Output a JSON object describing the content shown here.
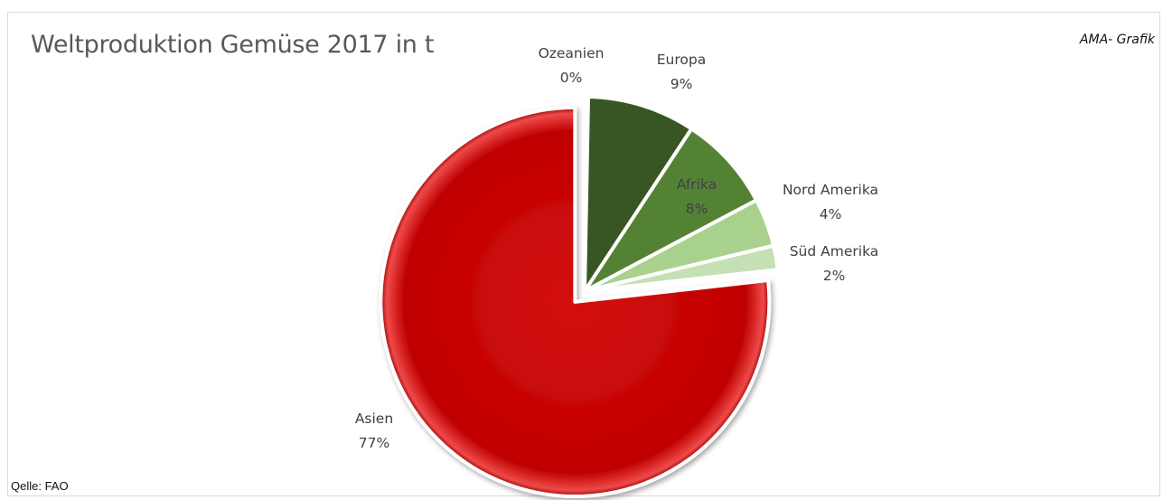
{
  "chart_data": {
    "type": "pie",
    "title": "Weltproduktion Gemüse 2017 in t",
    "credit": "AMA- Grafik",
    "source": "Qelle: FAO",
    "slices": [
      {
        "name": "Ozeanien",
        "value": 0.3,
        "label": "0%",
        "color": "#2f4a1c",
        "exploded": false
      },
      {
        "name": "Europa",
        "value": 9,
        "label": "9%",
        "color": "#375623",
        "exploded": false
      },
      {
        "name": "Afrika",
        "value": 8,
        "label": "8%",
        "color": "#548235",
        "exploded": false
      },
      {
        "name": "Nord Amerika",
        "value": 4,
        "label": "4%",
        "color": "#a9d18e",
        "exploded": false
      },
      {
        "name": "Süd Amerika",
        "value": 2,
        "label": "2%",
        "color": "#c5e0b4",
        "exploded": false
      },
      {
        "name": "Asien",
        "value": 77,
        "label": "77%",
        "color": "#c00000",
        "exploded": true
      }
    ],
    "legend": "none",
    "label_color": "#404040"
  }
}
